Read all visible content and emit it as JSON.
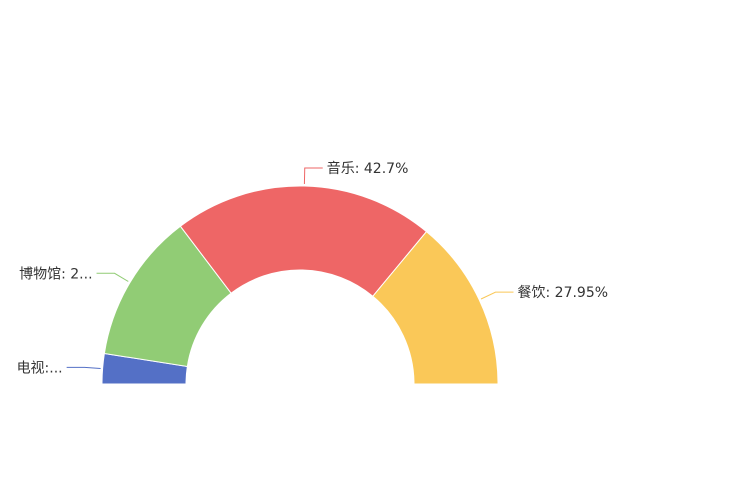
{
  "chart_data": {
    "type": "pie",
    "variant": "half-donut",
    "series": [
      {
        "name": "电视",
        "value": 4.92,
        "label": "电视:...",
        "color": "#5470c6"
      },
      {
        "name": "博物馆",
        "value": 24.43,
        "label": "博物馆: 2...",
        "color": "#91cc75"
      },
      {
        "name": "音乐",
        "value": 42.7,
        "label": "音乐: 42.7%",
        "color": "#ee6666"
      },
      {
        "name": "餐饮",
        "value": 27.95,
        "label": "餐饮: 27.95%",
        "color": "#fac858"
      }
    ]
  }
}
